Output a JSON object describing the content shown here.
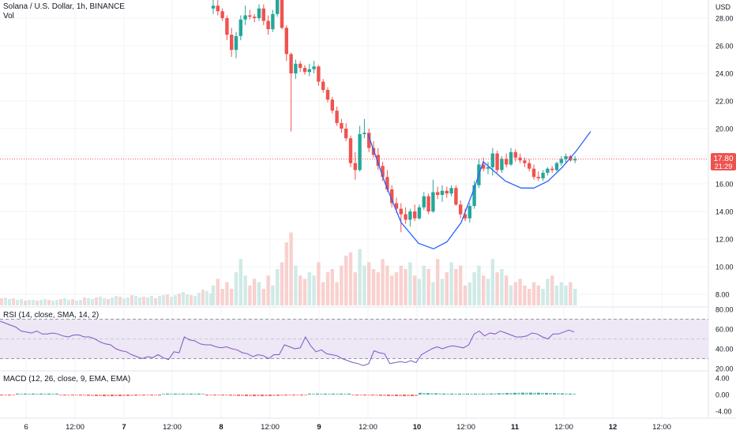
{
  "header": {
    "symbol_line": "Solana / U.S. Dollar, 1h, BINANCE",
    "vol_label": "Vol"
  },
  "colors": {
    "up": "#26a69a",
    "down": "#ef5350",
    "curve": "#2962ff",
    "rsi_line": "#7e57c2",
    "rsi_band": "#ede7f6",
    "price_line": "#ef5350",
    "axis_text": "#131722",
    "grid": "#f0f3fa"
  },
  "price_axis": {
    "currency": "USD",
    "ticks": [
      "28.00",
      "26.00",
      "24.00",
      "22.00",
      "20.00",
      "18.00",
      "16.00",
      "14.00",
      "12.00",
      "10.00",
      "8.00"
    ],
    "tick_values": [
      28,
      26,
      24,
      22,
      20,
      18,
      16,
      14,
      12,
      10,
      8
    ],
    "last_price": "17.80",
    "countdown": "21:29",
    "last_value": 17.8
  },
  "time_axis": {
    "labels": [
      "6",
      "12:00",
      "7",
      "12:00",
      "8",
      "12:00",
      "9",
      "12:00",
      "10",
      "12:00",
      "11",
      "12:00",
      "12",
      "12:00"
    ],
    "bold": [
      false,
      false,
      true,
      false,
      true,
      false,
      true,
      false,
      true,
      false,
      true,
      false,
      true,
      false
    ]
  },
  "rsi": {
    "label": "RSI (14, close, SMA, 14, 2)",
    "ticks": [
      "80.00",
      "60.00",
      "40.00",
      "20.00"
    ],
    "tick_values": [
      80,
      60,
      40,
      20
    ],
    "band": [
      30,
      70
    ],
    "middle": 50,
    "values": [
      68,
      66,
      64,
      62,
      58,
      57,
      56,
      58,
      55,
      55,
      56,
      55,
      53,
      52,
      54,
      54,
      52,
      52,
      50,
      47,
      45,
      44,
      40,
      38,
      37,
      34,
      32,
      30,
      32,
      31,
      34,
      31,
      29,
      37,
      36,
      52,
      49,
      48,
      45,
      44,
      44,
      42,
      41,
      42,
      40,
      39,
      36,
      35,
      32,
      34,
      33,
      30,
      34,
      34,
      44,
      42,
      40,
      41,
      52,
      43,
      37,
      39,
      35,
      34,
      33,
      30,
      28,
      26,
      25,
      23,
      25,
      38,
      36,
      35,
      25,
      26,
      27,
      26,
      28,
      26,
      34,
      37,
      40,
      42,
      40,
      42,
      43,
      42,
      41,
      44,
      55,
      58,
      53,
      56,
      55,
      58,
      56,
      54,
      52,
      52,
      53,
      56,
      55,
      52,
      50,
      55,
      55,
      57,
      59,
      57
    ]
  },
  "macd": {
    "label": "MACD (12, 26, close, 9, EMA, EMA)",
    "ticks": [
      "4.00",
      "0.00",
      "-4.00"
    ],
    "tick_values": [
      4,
      0,
      -4
    ]
  },
  "chart_data": {
    "type": "candlestick",
    "title": "Solana / U.S. Dollar, 1h, BINANCE",
    "timeframe": "1h",
    "y_range": [
      7,
      29.5
    ],
    "annotation": "cup-shaped curve drawn under the price, from about 19.6 down to about 11.3 and back up to about 19",
    "candles": [
      {
        "o": 28.7,
        "h": 29.5,
        "l": 28.3,
        "c": 28.9
      },
      {
        "o": 28.9,
        "h": 29.3,
        "l": 28.2,
        "c": 28.5
      },
      {
        "o": 28.5,
        "h": 28.7,
        "l": 27.8,
        "c": 28.0
      },
      {
        "o": 28.0,
        "h": 28.2,
        "l": 26.4,
        "c": 26.8
      },
      {
        "o": 26.8,
        "h": 27.3,
        "l": 25.2,
        "c": 25.7
      },
      {
        "o": 25.7,
        "h": 27.0,
        "l": 25.1,
        "c": 26.7
      },
      {
        "o": 26.7,
        "h": 28.2,
        "l": 26.4,
        "c": 27.9
      },
      {
        "o": 27.9,
        "h": 28.9,
        "l": 27.5,
        "c": 28.2
      },
      {
        "o": 28.2,
        "h": 28.6,
        "l": 27.9,
        "c": 28.1
      },
      {
        "o": 28.1,
        "h": 28.3,
        "l": 27.7,
        "c": 28.0
      },
      {
        "o": 28.0,
        "h": 29.0,
        "l": 27.8,
        "c": 28.7
      },
      {
        "o": 28.7,
        "h": 29.0,
        "l": 27.5,
        "c": 27.8
      },
      {
        "o": 27.8,
        "h": 28.2,
        "l": 26.8,
        "c": 27.2
      },
      {
        "o": 27.2,
        "h": 28.6,
        "l": 27.0,
        "c": 28.3
      },
      {
        "o": 28.3,
        "h": 29.5,
        "l": 28.1,
        "c": 29.5
      },
      {
        "o": 29.5,
        "h": 29.5,
        "l": 27.2,
        "c": 27.3
      },
      {
        "o": 27.3,
        "h": 27.5,
        "l": 24.9,
        "c": 25.4
      },
      {
        "o": 25.4,
        "h": 25.5,
        "l": 19.8,
        "c": 24.0
      },
      {
        "o": 24.0,
        "h": 25.0,
        "l": 23.6,
        "c": 24.7
      },
      {
        "o": 24.7,
        "h": 24.9,
        "l": 24.1,
        "c": 24.4
      },
      {
        "o": 24.4,
        "h": 24.6,
        "l": 23.9,
        "c": 24.1
      },
      {
        "o": 24.1,
        "h": 24.7,
        "l": 23.8,
        "c": 24.3
      },
      {
        "o": 24.3,
        "h": 24.9,
        "l": 24.0,
        "c": 24.5
      },
      {
        "o": 24.5,
        "h": 24.6,
        "l": 23.1,
        "c": 23.4
      },
      {
        "o": 23.4,
        "h": 23.6,
        "l": 22.6,
        "c": 22.8
      },
      {
        "o": 22.8,
        "h": 23.0,
        "l": 21.9,
        "c": 22.1
      },
      {
        "o": 22.1,
        "h": 22.3,
        "l": 21.1,
        "c": 21.3
      },
      {
        "o": 21.3,
        "h": 21.6,
        "l": 20.2,
        "c": 20.4
      },
      {
        "o": 20.4,
        "h": 20.7,
        "l": 19.7,
        "c": 20.0
      },
      {
        "o": 20.0,
        "h": 20.4,
        "l": 19.1,
        "c": 19.3
      },
      {
        "o": 19.3,
        "h": 19.5,
        "l": 17.2,
        "c": 17.5
      },
      {
        "o": 17.5,
        "h": 18.3,
        "l": 16.3,
        "c": 17.0
      },
      {
        "o": 17.0,
        "h": 20.2,
        "l": 16.9,
        "c": 19.6
      },
      {
        "o": 19.6,
        "h": 20.7,
        "l": 19.3,
        "c": 19.7
      },
      {
        "o": 19.7,
        "h": 20.0,
        "l": 18.3,
        "c": 18.6
      },
      {
        "o": 18.6,
        "h": 19.1,
        "l": 17.9,
        "c": 18.1
      },
      {
        "o": 18.1,
        "h": 18.6,
        "l": 17.0,
        "c": 17.3
      },
      {
        "o": 17.3,
        "h": 17.6,
        "l": 16.2,
        "c": 16.5
      },
      {
        "o": 16.5,
        "h": 17.0,
        "l": 15.4,
        "c": 15.6
      },
      {
        "o": 15.6,
        "h": 15.9,
        "l": 14.3,
        "c": 14.6
      },
      {
        "o": 14.6,
        "h": 15.0,
        "l": 13.9,
        "c": 14.2
      },
      {
        "o": 14.2,
        "h": 14.6,
        "l": 12.5,
        "c": 13.8
      },
      {
        "o": 13.8,
        "h": 14.3,
        "l": 13.1,
        "c": 13.4
      },
      {
        "o": 13.4,
        "h": 14.2,
        "l": 12.9,
        "c": 14.0
      },
      {
        "o": 14.0,
        "h": 14.5,
        "l": 13.3,
        "c": 13.5
      },
      {
        "o": 13.5,
        "h": 14.5,
        "l": 13.4,
        "c": 14.3
      },
      {
        "o": 14.3,
        "h": 15.4,
        "l": 14.1,
        "c": 15.1
      },
      {
        "o": 15.1,
        "h": 15.3,
        "l": 13.8,
        "c": 14.0
      },
      {
        "o": 14.0,
        "h": 16.3,
        "l": 13.9,
        "c": 15.4
      },
      {
        "o": 15.4,
        "h": 15.8,
        "l": 14.9,
        "c": 15.2
      },
      {
        "o": 15.2,
        "h": 15.9,
        "l": 14.7,
        "c": 15.5
      },
      {
        "o": 15.5,
        "h": 15.8,
        "l": 15.0,
        "c": 15.3
      },
      {
        "o": 15.3,
        "h": 15.9,
        "l": 15.1,
        "c": 15.7
      },
      {
        "o": 15.7,
        "h": 15.9,
        "l": 14.4,
        "c": 14.5
      },
      {
        "o": 14.5,
        "h": 14.8,
        "l": 13.5,
        "c": 13.8
      },
      {
        "o": 13.8,
        "h": 14.2,
        "l": 13.3,
        "c": 13.5
      },
      {
        "o": 13.5,
        "h": 14.6,
        "l": 13.2,
        "c": 14.4
      },
      {
        "o": 14.4,
        "h": 16.2,
        "l": 14.2,
        "c": 15.9
      },
      {
        "o": 15.9,
        "h": 17.8,
        "l": 15.7,
        "c": 17.4
      },
      {
        "o": 17.4,
        "h": 17.9,
        "l": 16.9,
        "c": 17.1
      },
      {
        "o": 17.1,
        "h": 17.6,
        "l": 16.7,
        "c": 17.2
      },
      {
        "o": 17.2,
        "h": 18.6,
        "l": 16.6,
        "c": 18.2
      },
      {
        "o": 18.2,
        "h": 18.4,
        "l": 16.8,
        "c": 17.0
      },
      {
        "o": 17.0,
        "h": 18.0,
        "l": 16.8,
        "c": 17.8
      },
      {
        "o": 17.8,
        "h": 18.2,
        "l": 17.2,
        "c": 17.4
      },
      {
        "o": 17.4,
        "h": 18.6,
        "l": 17.3,
        "c": 18.3
      },
      {
        "o": 18.3,
        "h": 18.5,
        "l": 17.6,
        "c": 17.9
      },
      {
        "o": 17.9,
        "h": 18.2,
        "l": 17.5,
        "c": 17.7
      },
      {
        "o": 17.7,
        "h": 17.9,
        "l": 17.2,
        "c": 17.5
      },
      {
        "o": 17.5,
        "h": 17.8,
        "l": 16.9,
        "c": 17.1
      },
      {
        "o": 17.1,
        "h": 17.4,
        "l": 16.3,
        "c": 16.5
      },
      {
        "o": 16.5,
        "h": 16.9,
        "l": 16.2,
        "c": 16.4
      },
      {
        "o": 16.4,
        "h": 17.0,
        "l": 16.2,
        "c": 16.8
      },
      {
        "o": 16.8,
        "h": 17.2,
        "l": 16.6,
        "c": 17.1
      },
      {
        "o": 17.1,
        "h": 17.3,
        "l": 16.8,
        "c": 17.0
      },
      {
        "o": 17.0,
        "h": 17.6,
        "l": 16.9,
        "c": 17.5
      },
      {
        "o": 17.5,
        "h": 18.0,
        "l": 17.3,
        "c": 17.8
      },
      {
        "o": 17.8,
        "h": 18.2,
        "l": 17.5,
        "c": 18.0
      },
      {
        "o": 18.0,
        "h": 18.1,
        "l": 17.6,
        "c": 17.7
      },
      {
        "o": 17.7,
        "h": 18.0,
        "l": 17.5,
        "c": 17.8
      }
    ],
    "volume": [
      6,
      8,
      5,
      7,
      5,
      10,
      14,
      9,
      6,
      8,
      7,
      5,
      9,
      6,
      11,
      13,
      19,
      22,
      12,
      9,
      8,
      10,
      9,
      13,
      7,
      10,
      11,
      7,
      12,
      15,
      16,
      10,
      17,
      12,
      13,
      11,
      10,
      14,
      12,
      9,
      10,
      12,
      11,
      13,
      9,
      8,
      12,
      11,
      7,
      14,
      8,
      10,
      13,
      11,
      12,
      6,
      7,
      10,
      12,
      9,
      8,
      14,
      10,
      11,
      9,
      6,
      7,
      8,
      6,
      5,
      7,
      6,
      5,
      8,
      9,
      6,
      7,
      6,
      7,
      5
    ],
    "rsi": {
      "settings": "14, close, SMA, 14, 2",
      "y_range": [
        20,
        80
      ],
      "band": [
        30,
        70
      ]
    },
    "macd": {
      "settings": "12, 26, close, 9, EMA, EMA",
      "y_range": [
        -4,
        4
      ]
    }
  }
}
